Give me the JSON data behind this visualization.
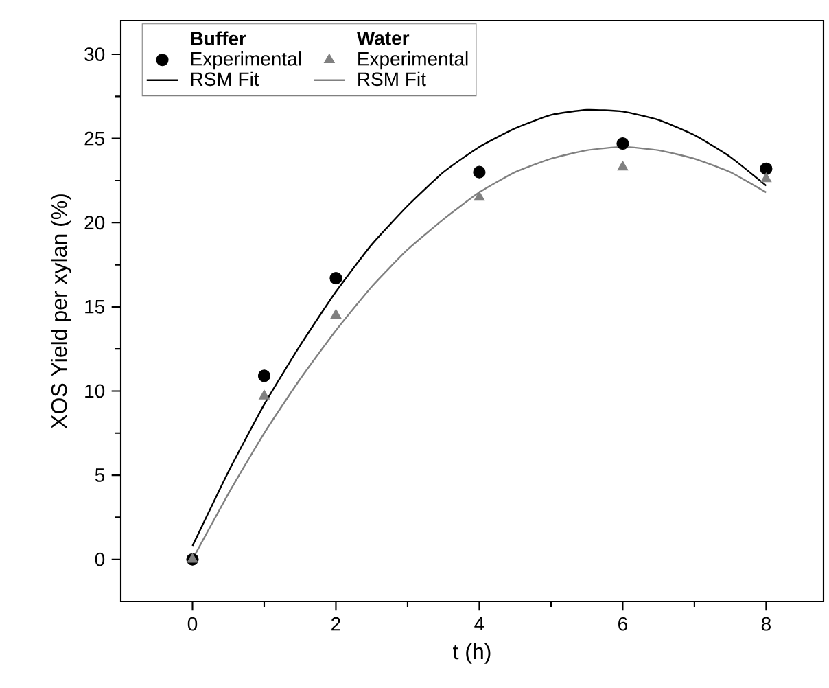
{
  "chart_data": {
    "type": "scatter",
    "xlabel": "t (h)",
    "ylabel": "XOS Yield per xylan (%)",
    "xlim": [
      -1,
      8.8
    ],
    "ylim": [
      -2.5,
      32
    ],
    "xticks": [
      0,
      2,
      4,
      6,
      8
    ],
    "yticks": [
      0,
      5,
      10,
      15,
      20,
      25,
      30
    ],
    "legend": "top left",
    "grid": false,
    "annotations": [
      "Buffer",
      "Water"
    ],
    "series": [
      {
        "name": "Experimental",
        "marker": "circle",
        "color": "#000000",
        "x": [
          0,
          1,
          2,
          4,
          6,
          8
        ],
        "values": [
          0,
          10.9,
          16.7,
          23.0,
          24.7,
          23.2
        ]
      },
      {
        "name": "RSM Fit",
        "type": "line",
        "marker": "none",
        "color": "#000000",
        "x": [
          0,
          0.5,
          1,
          1.5,
          2,
          2.5,
          3,
          3.5,
          4,
          4.5,
          5,
          5.5,
          6,
          6.5,
          7,
          7.5,
          8
        ],
        "values": [
          0.8,
          5.2,
          9.2,
          12.7,
          15.9,
          18.7,
          21.0,
          23.0,
          24.5,
          25.6,
          26.4,
          26.7,
          26.6,
          26.1,
          25.2,
          23.9,
          22.2
        ]
      },
      {
        "name": "Experimental",
        "marker": "triangle",
        "color": "#808080",
        "x": [
          0,
          1,
          2,
          4,
          6,
          8
        ],
        "values": [
          0,
          9.7,
          14.5,
          21.5,
          23.3,
          22.6
        ]
      },
      {
        "name": "RSM Fit",
        "type": "line",
        "marker": "none",
        "color": "#808080",
        "x": [
          0,
          0.5,
          1,
          1.5,
          2,
          2.5,
          3,
          3.5,
          4,
          4.5,
          5,
          5.5,
          6,
          6.5,
          7,
          7.5,
          8
        ],
        "values": [
          0,
          3.9,
          7.5,
          10.7,
          13.6,
          16.2,
          18.4,
          20.2,
          21.8,
          23.0,
          23.8,
          24.3,
          24.5,
          24.3,
          23.8,
          23.0,
          21.8
        ]
      }
    ]
  }
}
